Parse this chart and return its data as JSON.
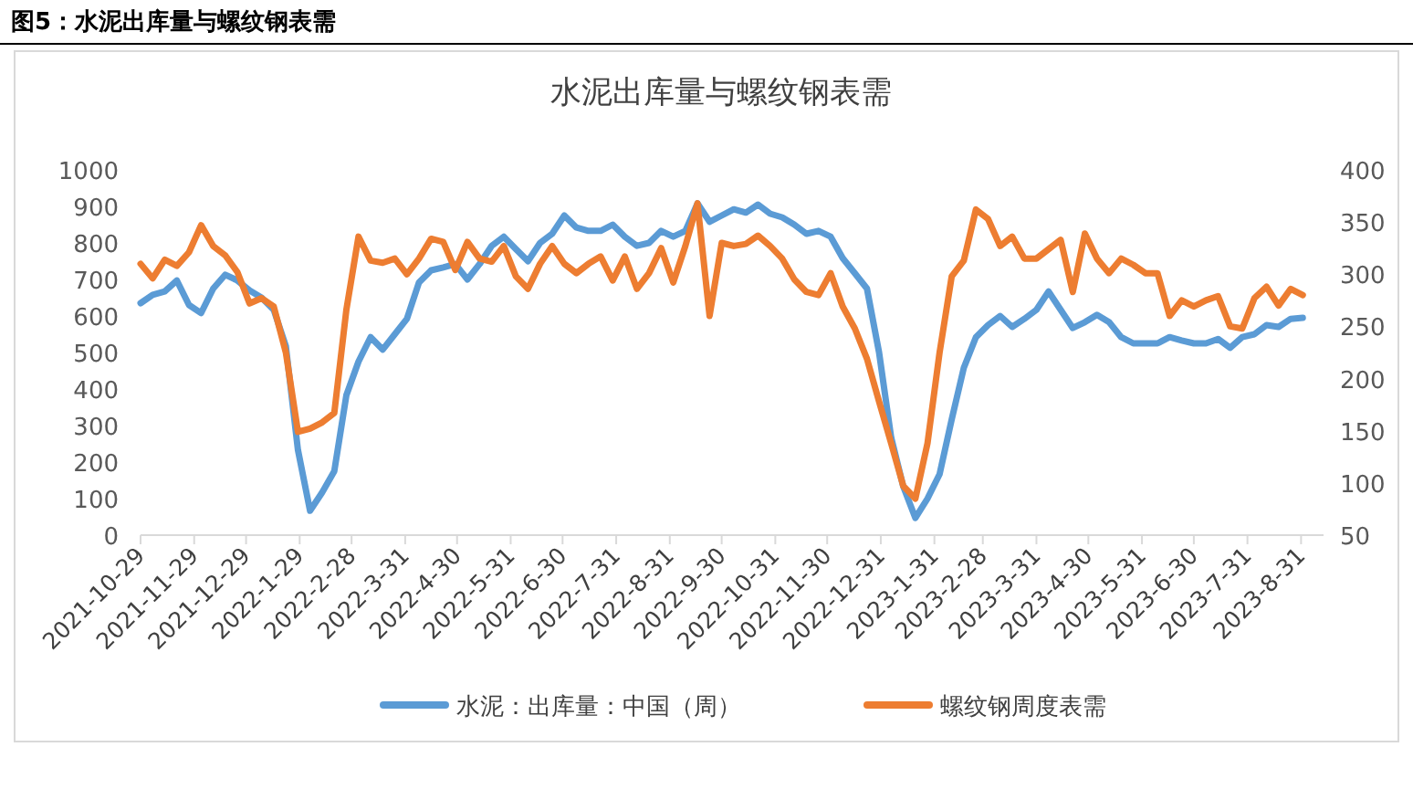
{
  "chart_data": {
    "type": "line",
    "title": "水泥出库量与螺纹钢表需",
    "annotations": [
      "图5：水泥出库量与螺纹钢表需"
    ],
    "x": [
      "2021-10-29",
      "2021-11-05",
      "2021-11-12",
      "2021-11-19",
      "2021-11-26",
      "2021-12-03",
      "2021-12-10",
      "2021-12-17",
      "2021-12-24",
      "2021-12-31",
      "2022-01-07",
      "2022-01-14",
      "2022-01-21",
      "2022-01-28",
      "2022-02-04",
      "2022-02-11",
      "2022-02-18",
      "2022-02-25",
      "2022-03-04",
      "2022-03-11",
      "2022-03-18",
      "2022-03-25",
      "2022-04-01",
      "2022-04-08",
      "2022-04-15",
      "2022-04-22",
      "2022-04-29",
      "2022-05-06",
      "2022-05-13",
      "2022-05-20",
      "2022-05-27",
      "2022-06-03",
      "2022-06-10",
      "2022-06-17",
      "2022-06-24",
      "2022-07-01",
      "2022-07-08",
      "2022-07-15",
      "2022-07-22",
      "2022-07-29",
      "2022-08-05",
      "2022-08-12",
      "2022-08-19",
      "2022-08-26",
      "2022-09-02",
      "2022-09-09",
      "2022-09-16",
      "2022-09-23",
      "2022-09-30",
      "2022-10-07",
      "2022-10-14",
      "2022-10-21",
      "2022-10-28",
      "2022-11-04",
      "2022-11-11",
      "2022-11-18",
      "2022-11-25",
      "2022-12-02",
      "2022-12-09",
      "2022-12-16",
      "2022-12-23",
      "2022-12-30",
      "2023-01-06",
      "2023-01-13",
      "2023-01-20",
      "2023-01-27",
      "2023-02-03",
      "2023-02-10",
      "2023-02-17",
      "2023-02-24",
      "2023-03-03",
      "2023-03-10",
      "2023-03-17",
      "2023-03-24",
      "2023-03-31",
      "2023-04-07",
      "2023-04-14",
      "2023-04-21",
      "2023-04-28",
      "2023-05-05",
      "2023-05-12",
      "2023-05-19",
      "2023-05-26",
      "2023-06-02",
      "2023-06-09",
      "2023-06-16",
      "2023-06-23",
      "2023-06-30",
      "2023-07-07",
      "2023-07-14",
      "2023-07-21",
      "2023-07-28",
      "2023-08-04",
      "2023-08-11",
      "2023-08-18",
      "2023-08-25",
      "2023-09-01"
    ],
    "series": [
      {
        "name": "水泥：出库量：中国（周）",
        "color": "#5b9bd5",
        "values": [
          635,
          658,
          667,
          697,
          630,
          608,
          675,
          713,
          697,
          670,
          650,
          617,
          517,
          233,
          67,
          117,
          175,
          383,
          475,
          542,
          508,
          550,
          592,
          692,
          725,
          733,
          742,
          700,
          742,
          792,
          817,
          783,
          750,
          800,
          825,
          875,
          842,
          833,
          833,
          850,
          817,
          792,
          800,
          833,
          817,
          833,
          908,
          858,
          875,
          892,
          883,
          905,
          880,
          870,
          850,
          825,
          833,
          817,
          758,
          717,
          675,
          500,
          267,
          133,
          47,
          100,
          167,
          317,
          458,
          542,
          575,
          600,
          570,
          592,
          617,
          667,
          617,
          567,
          583,
          603,
          583,
          542,
          525,
          525,
          525,
          542,
          533,
          525,
          525,
          537,
          513,
          542,
          550,
          575,
          570,
          592,
          595
        ]
      },
      {
        "name": "螺纹钢周度表需",
        "color": "#ed7d31",
        "axis": "y2",
        "values": [
          310,
          296,
          314,
          308,
          321,
          347,
          327,
          318,
          302,
          272,
          277,
          269,
          225,
          149,
          152,
          158,
          167,
          266,
          336,
          313,
          311,
          315,
          300,
          315,
          334,
          331,
          304,
          331,
          315,
          312,
          327,
          298,
          286,
          310,
          327,
          310,
          301,
          310,
          317,
          294,
          317,
          286,
          301,
          325,
          292,
          327,
          368,
          260,
          330,
          327,
          329,
          337,
          327,
          315,
          295,
          283,
          280,
          301,
          269,
          248,
          219,
          178,
          138,
          97,
          85,
          138,
          225,
          298,
          313,
          362,
          353,
          327,
          336,
          315,
          315,
          324,
          333,
          283,
          339,
          315,
          301,
          315,
          309,
          301,
          301,
          260,
          275,
          269,
          275,
          279,
          250,
          248,
          277,
          288,
          270,
          286,
          280
        ]
      }
    ],
    "xlim": [
      "2021-10-29",
      "2023-09-13"
    ],
    "xticks": [
      {
        "value": "2021-10-29",
        "label": "2021-10-29"
      },
      {
        "value": "2021-11-29",
        "label": "2021-11-29"
      },
      {
        "value": "2021-12-29",
        "label": "2021-12-29"
      },
      {
        "value": "2022-01-29",
        "label": "2022-1-29"
      },
      {
        "value": "2022-02-28",
        "label": "2022-2-28"
      },
      {
        "value": "2022-03-31",
        "label": "2022-3-31"
      },
      {
        "value": "2022-04-30",
        "label": "2022-4-30"
      },
      {
        "value": "2022-05-31",
        "label": "2022-5-31"
      },
      {
        "value": "2022-06-30",
        "label": "2022-6-30"
      },
      {
        "value": "2022-07-31",
        "label": "2022-7-31"
      },
      {
        "value": "2022-08-31",
        "label": "2022-8-31"
      },
      {
        "value": "2022-09-30",
        "label": "2022-9-30"
      },
      {
        "value": "2022-10-31",
        "label": "2022-10-31"
      },
      {
        "value": "2022-11-30",
        "label": "2022-11-30"
      },
      {
        "value": "2022-12-31",
        "label": "2022-12-31"
      },
      {
        "value": "2023-01-31",
        "label": "2023-1-31"
      },
      {
        "value": "2023-02-28",
        "label": "2023-2-28"
      },
      {
        "value": "2023-03-31",
        "label": "2023-3-31"
      },
      {
        "value": "2023-04-30",
        "label": "2023-4-30"
      },
      {
        "value": "2023-05-31",
        "label": "2023-5-31"
      },
      {
        "value": "2023-06-30",
        "label": "2023-6-30"
      },
      {
        "value": "2023-07-31",
        "label": "2023-7-31"
      },
      {
        "value": "2023-08-31",
        "label": "2023-8-31"
      }
    ],
    "ylim": [
      0,
      1000
    ],
    "yticks": [
      0,
      100,
      200,
      300,
      400,
      500,
      600,
      700,
      800,
      900,
      1000
    ],
    "y2lim": [
      50,
      400
    ],
    "y2ticks": [
      50,
      100,
      150,
      200,
      250,
      300,
      350,
      400
    ],
    "legend": "bottom",
    "marker": "none",
    "line_style": "solid",
    "grid": false
  }
}
